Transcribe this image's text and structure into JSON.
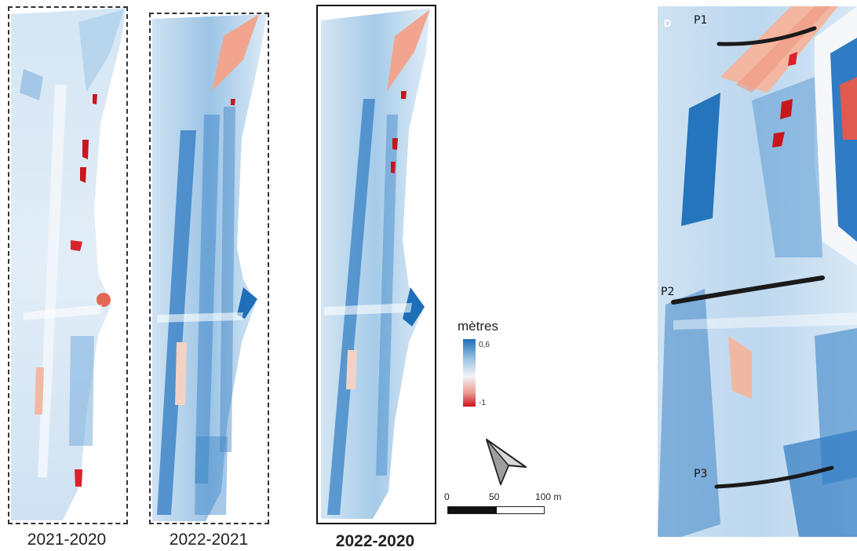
{
  "panels": [
    {
      "label": "2021-2020",
      "frame_style": "dashed"
    },
    {
      "label": "2022-2021",
      "frame_style": "dashed"
    },
    {
      "label": "2022-2020",
      "frame_style": "solid"
    }
  ],
  "legend": {
    "title": "mètres",
    "max_label": "0,6",
    "min_label": "-1",
    "color_max": "#1f6fb8",
    "color_mid": "#f4f4f4",
    "color_min": "#c9141c"
  },
  "scale_bar": {
    "ticks": [
      "0",
      "50",
      "100 m"
    ]
  },
  "detail_panel": {
    "letter": "D",
    "profiles": [
      "P1",
      "P2",
      "P3"
    ]
  },
  "north_arrow": {
    "icon": "north-arrow-icon"
  }
}
